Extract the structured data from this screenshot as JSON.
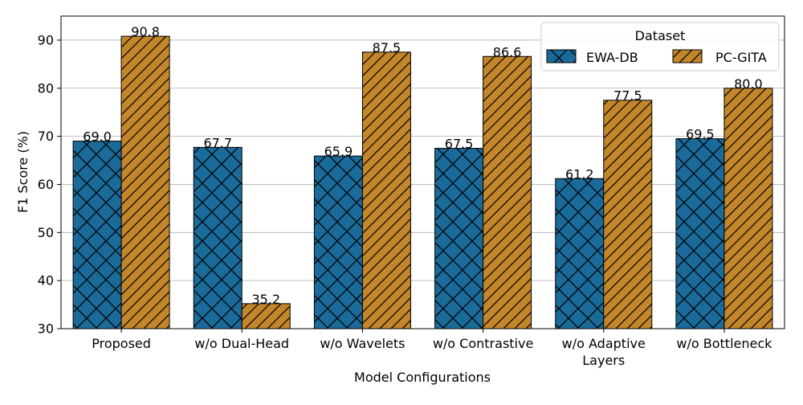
{
  "chart_data": {
    "type": "bar",
    "categories": [
      "Proposed",
      "w/o Dual-Head",
      "w/o Wavelets",
      "w/o Contrastive",
      "w/o Adaptive\nLayers",
      "w/o Bottleneck"
    ],
    "series": [
      {
        "name": "EWA-DB",
        "values": [
          69.0,
          67.7,
          65.9,
          67.5,
          61.2,
          69.5
        ],
        "color": "#1a6a9a",
        "hatch": "cross-diagonal"
      },
      {
        "name": "PC-GITA",
        "values": [
          90.8,
          35.2,
          87.5,
          86.6,
          77.5,
          80.0
        ],
        "color": "#c4862a",
        "hatch": "forward-diagonal"
      }
    ],
    "value_labels": {
      "EWA-DB": [
        "69.0",
        "67.7",
        "65.9",
        "67.5",
        "61.2",
        "69.5"
      ],
      "PC-GITA": [
        "90.8",
        "35.2",
        "87.5",
        "86.6",
        "77.5",
        "80.0"
      ]
    },
    "xlabel": "Model Configurations",
    "ylabel": "F1 Score (%)",
    "ylim": [
      30,
      95
    ],
    "yticks": [
      30,
      40,
      50,
      60,
      70,
      80,
      90
    ],
    "grid": "horizontal",
    "legend": {
      "title": "Dataset",
      "placement": "top-right",
      "columns": 2
    }
  }
}
